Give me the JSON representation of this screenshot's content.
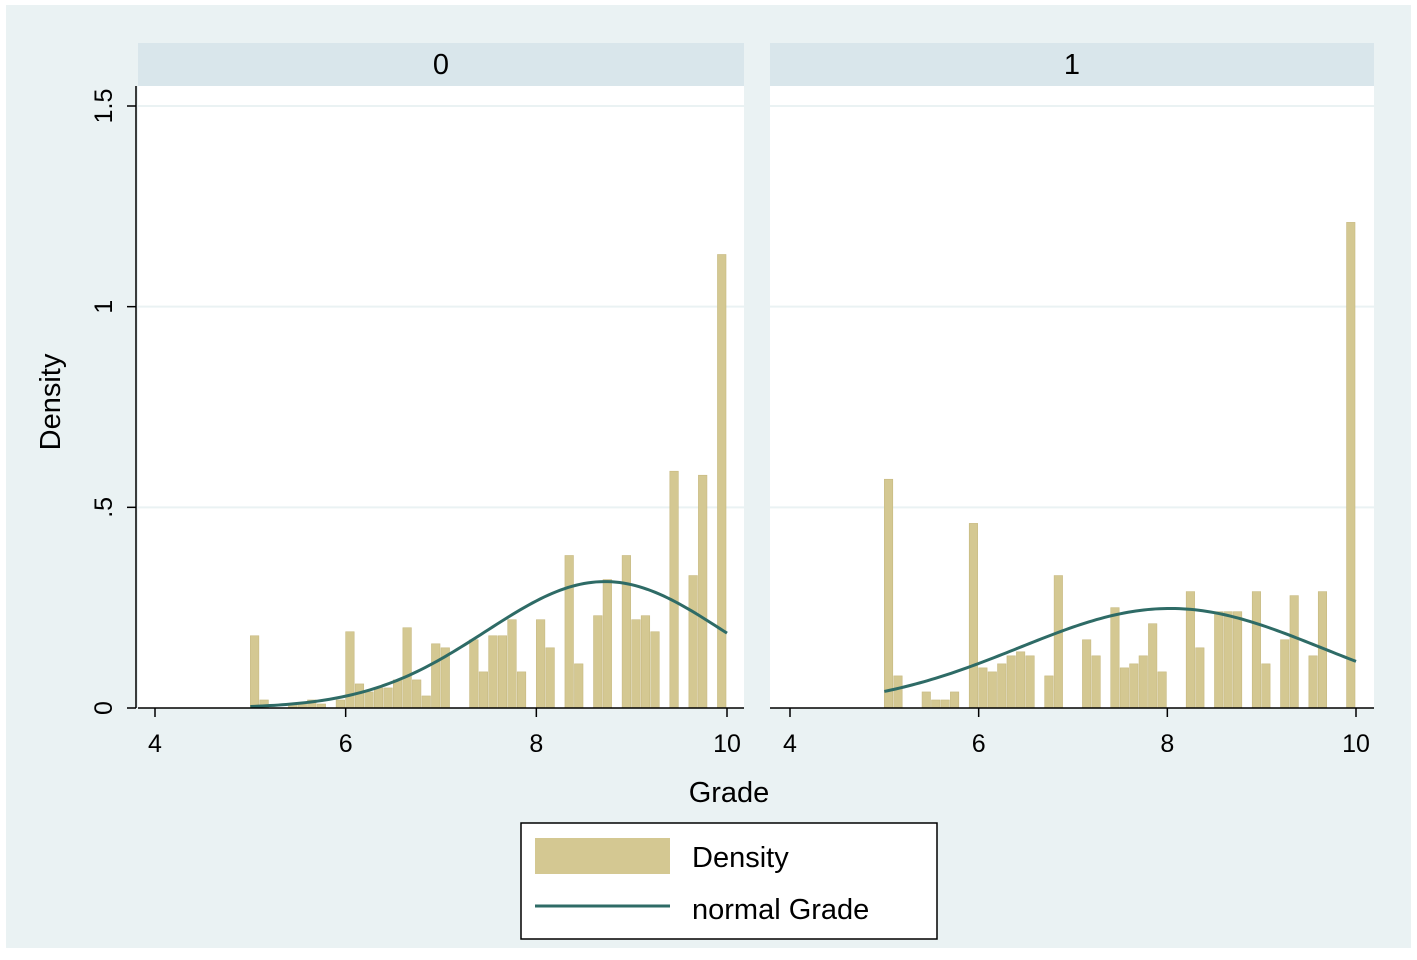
{
  "colors": {
    "background": "#ffffff",
    "graph_region": "#eaf2f3",
    "plot_region": "#ffffff",
    "strip": "#d9e6eb",
    "bar_fill": "#d4c892",
    "bar_stroke": "#c7b980",
    "curve": "#2e6b66",
    "grid": "#eaf2f3",
    "axis": "#000000",
    "text": "#000000"
  },
  "chart_data": {
    "type": "bar",
    "xlabel": "Grade",
    "ylabel": "Density",
    "xlim": [
      4,
      10
    ],
    "ylim": [
      0,
      1.5
    ],
    "xticks": [
      4,
      6,
      8,
      10
    ],
    "xtick_labels": [
      "4",
      "6",
      "8",
      "10"
    ],
    "yticks": [
      0,
      0.5,
      1,
      1.5
    ],
    "ytick_labels": [
      "0",
      ".5",
      "1",
      "1.5"
    ],
    "grid": true,
    "legend": {
      "placement": "bottom-center",
      "entries": [
        {
          "label": "Density",
          "kind": "bar"
        },
        {
          "label": "normal Grade",
          "kind": "line"
        }
      ]
    },
    "bin_width": 0.1,
    "panels": [
      {
        "label": "0",
        "bins": [
          {
            "x": 5.0,
            "y": 0.18
          },
          {
            "x": 5.1,
            "y": 0.02
          },
          {
            "x": 5.4,
            "y": 0.01
          },
          {
            "x": 5.5,
            "y": 0.01
          },
          {
            "x": 5.6,
            "y": 0.02
          },
          {
            "x": 5.7,
            "y": 0.01
          },
          {
            "x": 5.9,
            "y": 0.02
          },
          {
            "x": 6.0,
            "y": 0.19
          },
          {
            "x": 6.1,
            "y": 0.06
          },
          {
            "x": 6.2,
            "y": 0.04
          },
          {
            "x": 6.3,
            "y": 0.05
          },
          {
            "x": 6.4,
            "y": 0.05
          },
          {
            "x": 6.5,
            "y": 0.07
          },
          {
            "x": 6.6,
            "y": 0.2
          },
          {
            "x": 6.7,
            "y": 0.07
          },
          {
            "x": 6.8,
            "y": 0.03
          },
          {
            "x": 6.9,
            "y": 0.16
          },
          {
            "x": 7.0,
            "y": 0.15
          },
          {
            "x": 7.3,
            "y": 0.17
          },
          {
            "x": 7.4,
            "y": 0.09
          },
          {
            "x": 7.5,
            "y": 0.18
          },
          {
            "x": 7.6,
            "y": 0.18
          },
          {
            "x": 7.7,
            "y": 0.22
          },
          {
            "x": 7.8,
            "y": 0.09
          },
          {
            "x": 8.0,
            "y": 0.22
          },
          {
            "x": 8.1,
            "y": 0.15
          },
          {
            "x": 8.3,
            "y": 0.38
          },
          {
            "x": 8.4,
            "y": 0.11
          },
          {
            "x": 8.6,
            "y": 0.23
          },
          {
            "x": 8.7,
            "y": 0.32
          },
          {
            "x": 8.9,
            "y": 0.38
          },
          {
            "x": 9.0,
            "y": 0.22
          },
          {
            "x": 9.1,
            "y": 0.23
          },
          {
            "x": 9.2,
            "y": 0.19
          },
          {
            "x": 9.4,
            "y": 0.59
          },
          {
            "x": 9.6,
            "y": 0.33
          },
          {
            "x": 9.7,
            "y": 0.58
          },
          {
            "x": 9.9,
            "y": 1.13
          }
        ],
        "normal": {
          "mean": 8.72,
          "sd": 1.25,
          "peak": 0.315,
          "x_range": [
            5.0,
            10.0
          ]
        }
      },
      {
        "label": "1",
        "bins": [
          {
            "x": 5.0,
            "y": 0.57
          },
          {
            "x": 5.1,
            "y": 0.08
          },
          {
            "x": 5.4,
            "y": 0.04
          },
          {
            "x": 5.5,
            "y": 0.02
          },
          {
            "x": 5.6,
            "y": 0.02
          },
          {
            "x": 5.7,
            "y": 0.04
          },
          {
            "x": 5.9,
            "y": 0.46
          },
          {
            "x": 6.0,
            "y": 0.1
          },
          {
            "x": 6.1,
            "y": 0.09
          },
          {
            "x": 6.2,
            "y": 0.11
          },
          {
            "x": 6.3,
            "y": 0.13
          },
          {
            "x": 6.4,
            "y": 0.14
          },
          {
            "x": 6.5,
            "y": 0.13
          },
          {
            "x": 6.7,
            "y": 0.08
          },
          {
            "x": 6.8,
            "y": 0.33
          },
          {
            "x": 7.1,
            "y": 0.17
          },
          {
            "x": 7.2,
            "y": 0.13
          },
          {
            "x": 7.4,
            "y": 0.25
          },
          {
            "x": 7.5,
            "y": 0.1
          },
          {
            "x": 7.6,
            "y": 0.11
          },
          {
            "x": 7.7,
            "y": 0.13
          },
          {
            "x": 7.8,
            "y": 0.21
          },
          {
            "x": 7.9,
            "y": 0.09
          },
          {
            "x": 8.2,
            "y": 0.29
          },
          {
            "x": 8.3,
            "y": 0.15
          },
          {
            "x": 8.5,
            "y": 0.24
          },
          {
            "x": 8.6,
            "y": 0.24
          },
          {
            "x": 8.7,
            "y": 0.24
          },
          {
            "x": 8.9,
            "y": 0.29
          },
          {
            "x": 9.0,
            "y": 0.11
          },
          {
            "x": 9.2,
            "y": 0.17
          },
          {
            "x": 9.3,
            "y": 0.28
          },
          {
            "x": 9.5,
            "y": 0.13
          },
          {
            "x": 9.6,
            "y": 0.29
          },
          {
            "x": 9.9,
            "y": 1.21
          }
        ],
        "normal": {
          "mean": 8.03,
          "sd": 1.6,
          "peak": 0.248,
          "x_range": [
            5.0,
            10.0
          ]
        }
      }
    ]
  }
}
